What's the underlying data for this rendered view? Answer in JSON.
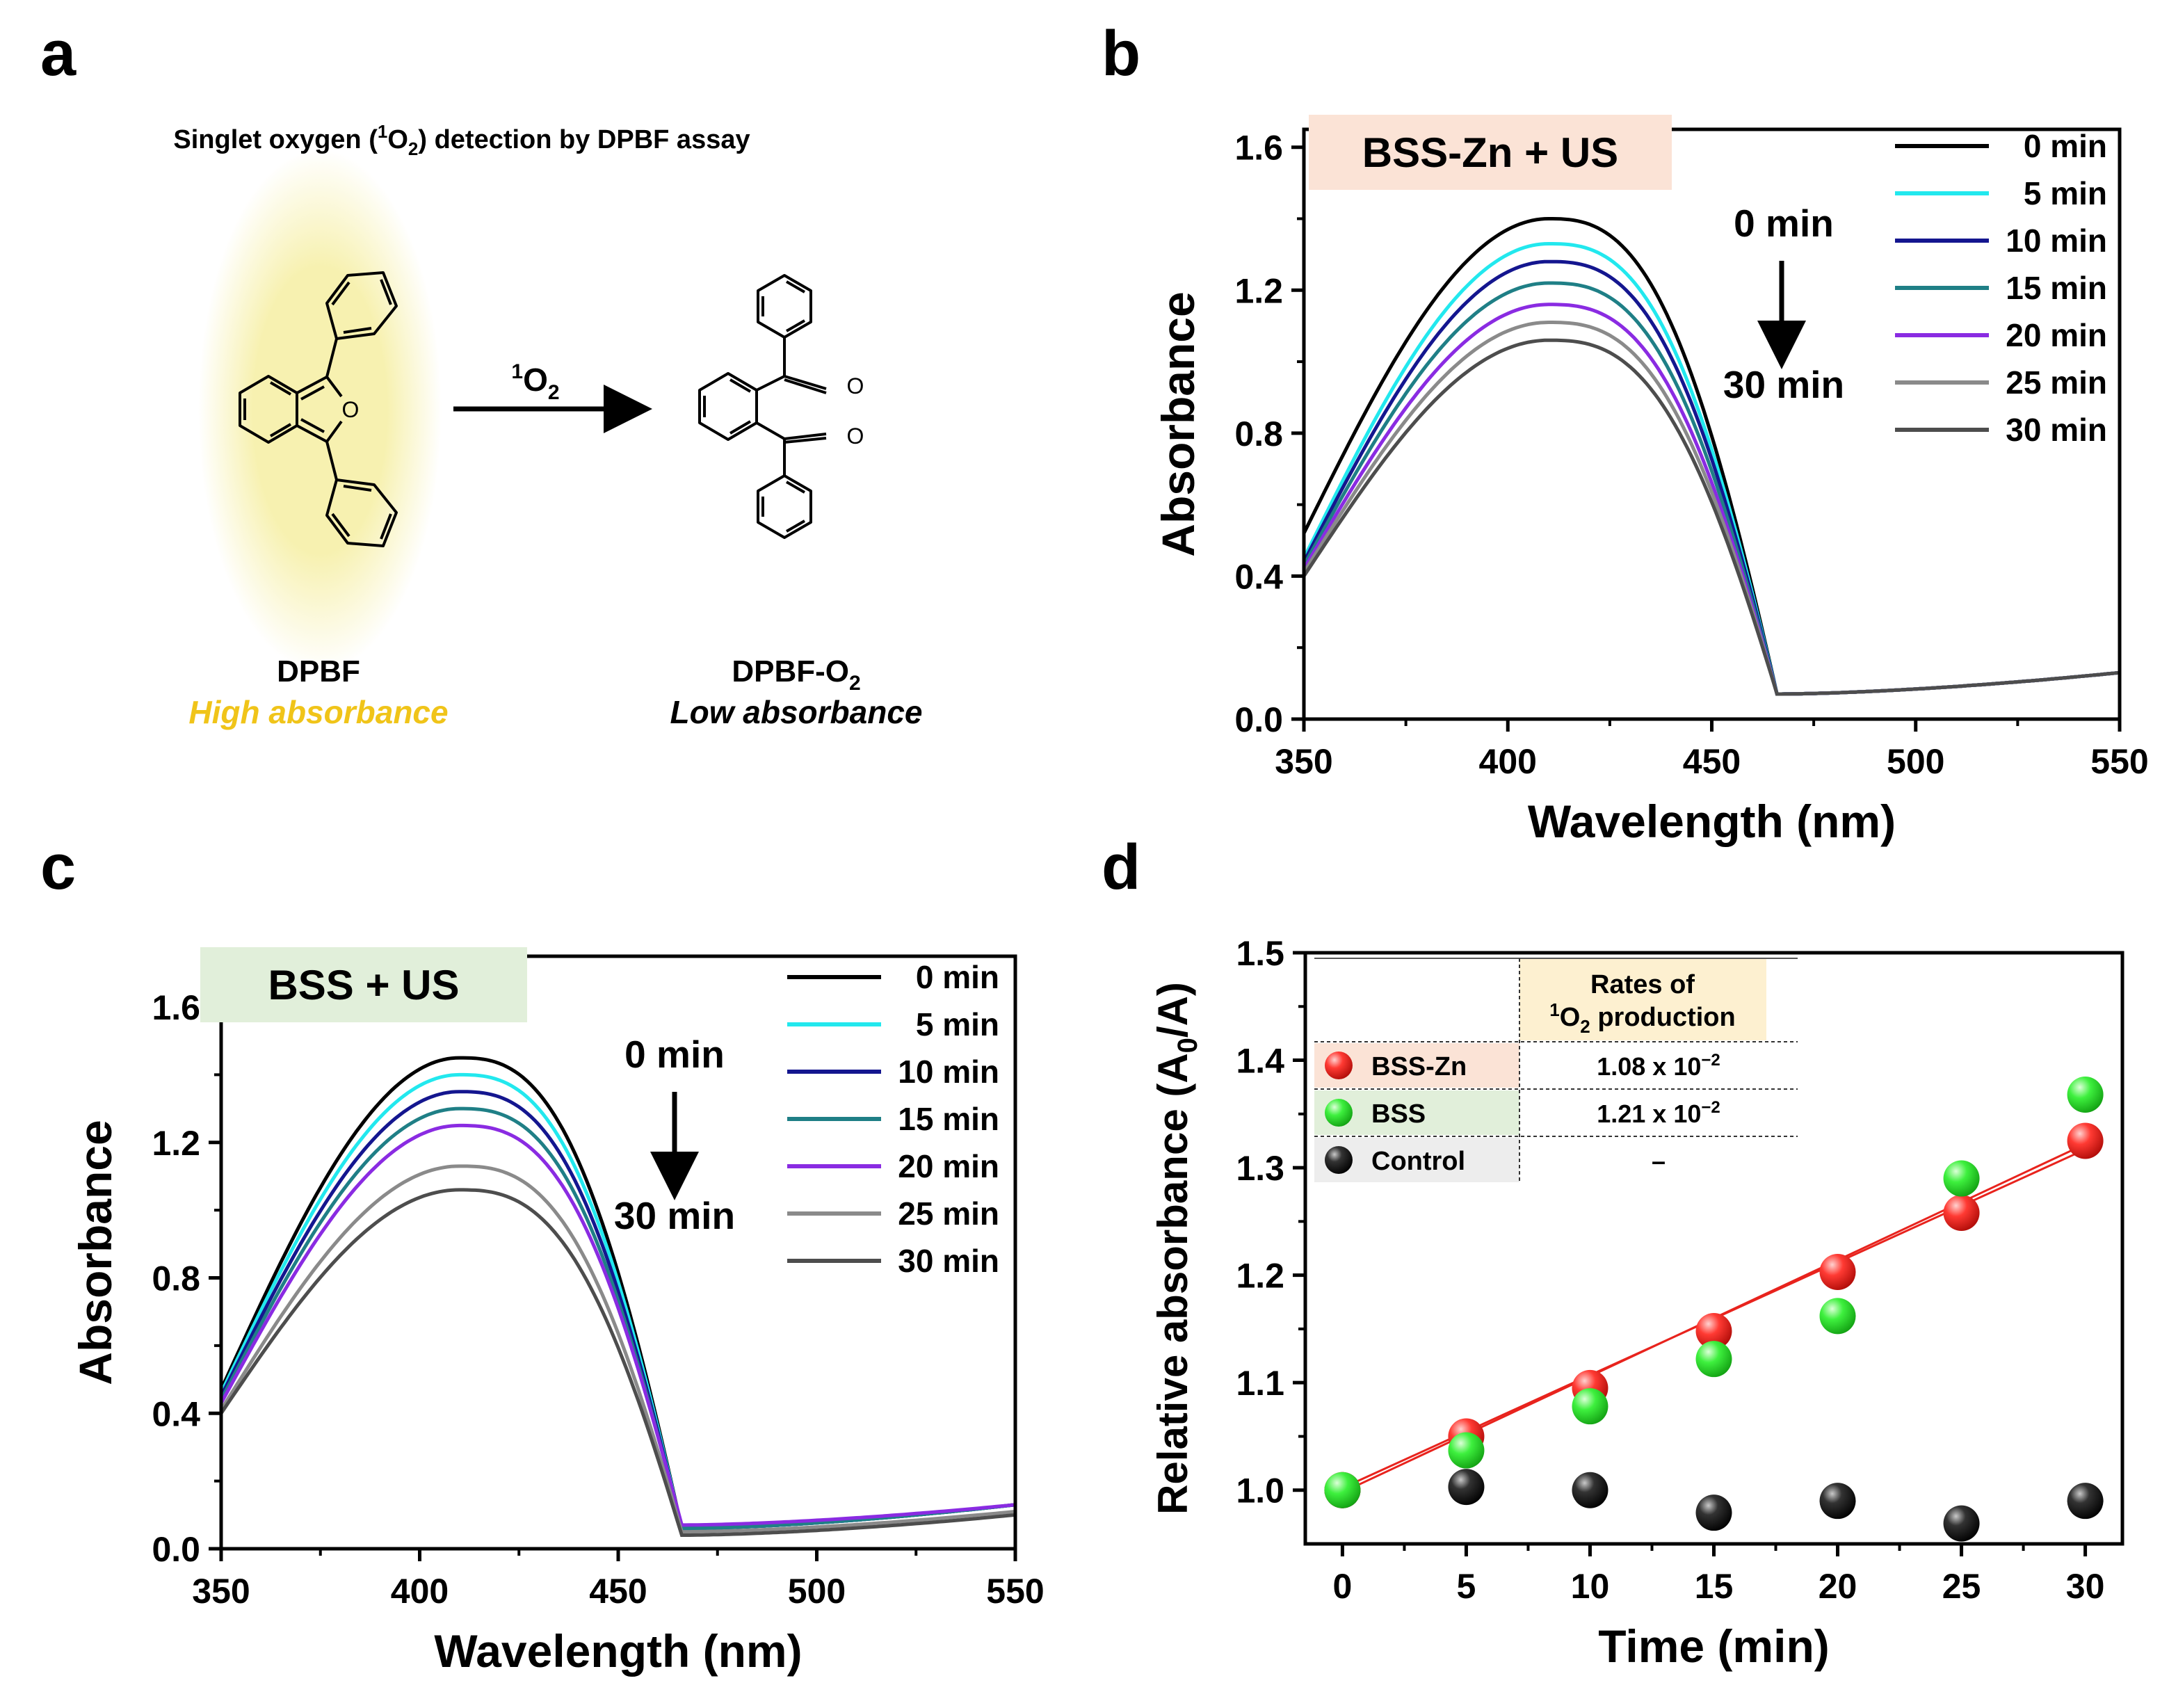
{
  "figure_type": "multi-panel scientific figure",
  "panels": {
    "a": {
      "letter": "a",
      "title_pre": "Singlet oxygen (",
      "title_sup": "1",
      "title_O": "O",
      "title_sub": "2",
      "title_post": ") detection by DPBF assay",
      "reagent_sup": "1",
      "reagent_O": "O",
      "reagent_sub": "2",
      "left_name": "DPBF",
      "left_desc": "High absorbance",
      "right_name_base": "DPBF-O",
      "right_name_sub": "2",
      "right_desc": "Low absorbance",
      "ring_O_label": "O",
      "carbonyl_O_label": "O",
      "highlight_color": "#f7f1b0",
      "desc_color": "#f0c419"
    },
    "b": {
      "letter": "b",
      "box_label": "BSS-Zn + US",
      "arrow_top": "0 min",
      "arrow_bottom": "30 min",
      "box_color": "#fbe3d6"
    },
    "c": {
      "letter": "c",
      "box_label": "BSS + US",
      "arrow_top": "0 min",
      "arrow_bottom": "30 min",
      "box_color": "#e1efda"
    },
    "d": {
      "letter": "d",
      "table_header_line1": "Rates of",
      "table_header_sup": "1",
      "table_header_rest": "O",
      "table_header_sub": "2",
      "table_header_end": " production",
      "header_color": "#fdf0d0",
      "rows": [
        {
          "name": "BSS-Zn",
          "rate_base": "1.08 x 10",
          "rate_exp": "−2",
          "color": "#fbe3d6",
          "marker": "#e8231d"
        },
        {
          "name": "BSS",
          "rate_base": "1.21 x 10",
          "rate_exp": "−2",
          "color": "#e1efda",
          "marker": "#2fd62f"
        },
        {
          "name": "Control",
          "rate_base": "–",
          "rate_exp": "",
          "color": "#ededed",
          "marker": "#111111"
        }
      ]
    }
  },
  "chart_data": [
    {
      "id": "b",
      "type": "line",
      "xlabel": "Wavelength (nm)",
      "ylabel": "Absorbance",
      "xlim": [
        350,
        550
      ],
      "ylim": [
        0.0,
        1.65
      ],
      "xticks": [
        350,
        400,
        450,
        500,
        550
      ],
      "yticks": [
        0.0,
        0.4,
        0.8,
        1.2,
        1.6
      ],
      "ytick_labels": [
        "0.0",
        "0.4",
        "0.8",
        "1.2",
        "1.6"
      ],
      "legend_position": "top-right",
      "series": [
        {
          "name": "0 min",
          "color": "#000000",
          "peak": 1.4,
          "start": 0.52,
          "tail_start": 0.07,
          "tail_end": 0.13
        },
        {
          "name": "5 min",
          "color": "#22e8ee",
          "peak": 1.33,
          "start": 0.45,
          "tail_start": 0.07,
          "tail_end": 0.13
        },
        {
          "name": "10 min",
          "color": "#14168f",
          "peak": 1.28,
          "start": 0.44,
          "tail_start": 0.07,
          "tail_end": 0.13
        },
        {
          "name": "15 min",
          "color": "#1f7f86",
          "peak": 1.22,
          "start": 0.43,
          "tail_start": 0.07,
          "tail_end": 0.13
        },
        {
          "name": "20 min",
          "color": "#8a2be2",
          "peak": 1.16,
          "start": 0.42,
          "tail_start": 0.07,
          "tail_end": 0.13
        },
        {
          "name": "25 min",
          "color": "#8a8a8a",
          "peak": 1.11,
          "start": 0.41,
          "tail_start": 0.07,
          "tail_end": 0.13
        },
        {
          "name": "30 min",
          "color": "#4d4d4d",
          "peak": 1.06,
          "start": 0.4,
          "tail_start": 0.07,
          "tail_end": 0.13
        }
      ]
    },
    {
      "id": "c",
      "type": "line",
      "xlabel": "Wavelength (nm)",
      "ylabel": "Absorbance",
      "xlim": [
        350,
        550
      ],
      "ylim": [
        0.0,
        1.75
      ],
      "xticks": [
        350,
        400,
        450,
        500,
        550
      ],
      "yticks": [
        0.0,
        0.4,
        0.8,
        1.2,
        1.6
      ],
      "ytick_labels": [
        "0.0",
        "0.4",
        "0.8",
        "1.2",
        "1.6"
      ],
      "legend_position": "top-right",
      "series": [
        {
          "name": "0 min",
          "color": "#000000",
          "peak": 1.45,
          "start": 0.47,
          "tail_start": 0.06,
          "tail_end": 0.13
        },
        {
          "name": "5 min",
          "color": "#22e8ee",
          "peak": 1.4,
          "start": 0.46,
          "tail_start": 0.06,
          "tail_end": 0.13
        },
        {
          "name": "10 min",
          "color": "#14168f",
          "peak": 1.35,
          "start": 0.45,
          "tail_start": 0.06,
          "tail_end": 0.13
        },
        {
          "name": "15 min",
          "color": "#1f7f86",
          "peak": 1.3,
          "start": 0.44,
          "tail_start": 0.06,
          "tail_end": 0.13
        },
        {
          "name": "20 min",
          "color": "#8a2be2",
          "peak": 1.25,
          "start": 0.43,
          "tail_start": 0.07,
          "tail_end": 0.13
        },
        {
          "name": "25 min",
          "color": "#8a8a8a",
          "peak": 1.13,
          "start": 0.41,
          "tail_start": 0.05,
          "tail_end": 0.11
        },
        {
          "name": "30 min",
          "color": "#4d4d4d",
          "peak": 1.06,
          "start": 0.4,
          "tail_start": 0.04,
          "tail_end": 0.1
        }
      ]
    },
    {
      "id": "d",
      "type": "scatter",
      "xlabel": "Time (min)",
      "ylabel_base": "Relative absorbance (A",
      "ylabel_sub": "0",
      "ylabel_end": "/A)",
      "xlim": [
        -1.5,
        31.5
      ],
      "ylim": [
        0.95,
        1.5
      ],
      "xticks": [
        0,
        5,
        10,
        15,
        20,
        25,
        30
      ],
      "yticks": [
        1.0,
        1.1,
        1.2,
        1.3,
        1.4,
        1.5
      ],
      "ytick_labels": [
        "1.0",
        "1.1",
        "1.2",
        "1.3",
        "1.4",
        "1.5"
      ],
      "fit_color": "#e8231d",
      "series": [
        {
          "name": "BSS-Zn",
          "color": "#e8231d",
          "x": [
            0,
            5,
            10,
            15,
            20,
            25,
            30
          ],
          "y": [
            1.0,
            1.05,
            1.095,
            1.148,
            1.203,
            1.258,
            1.325
          ],
          "fit": [
            0.998,
            1.322
          ]
        },
        {
          "name": "BSS",
          "color": "#2fd62f",
          "x": [
            0,
            5,
            10,
            15,
            20,
            25,
            30
          ],
          "y": [
            1.0,
            1.037,
            1.078,
            1.122,
            1.162,
            1.29,
            1.368
          ],
          "fit": [
            1.002,
            1.317
          ]
        },
        {
          "name": "Control",
          "color": "#111111",
          "x": [
            0,
            5,
            10,
            15,
            20,
            25,
            30
          ],
          "y": [
            1.0,
            1.003,
            1.0,
            0.979,
            0.99,
            0.969,
            0.99
          ]
        }
      ]
    }
  ]
}
